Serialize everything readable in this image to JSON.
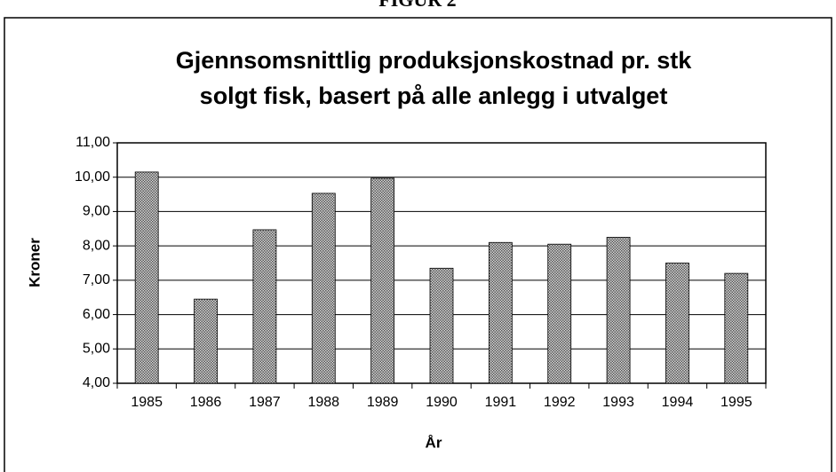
{
  "header": "FIGUR 2",
  "chart_data": {
    "type": "bar",
    "title": [
      "Gjennsomsnittlig produksjonskostnad pr. stk",
      "solgt fisk, basert på alle anlegg i utvalget"
    ],
    "xlabel": "År",
    "ylabel": "Kroner",
    "categories": [
      "1985",
      "1986",
      "1987",
      "1988",
      "1989",
      "1990",
      "1991",
      "1992",
      "1993",
      "1994",
      "1995"
    ],
    "values": [
      10.15,
      6.45,
      8.47,
      9.53,
      9.97,
      7.35,
      8.1,
      8.05,
      8.25,
      7.5,
      7.2
    ],
    "color": "#9a9a9a",
    "ylim": [
      4,
      11
    ],
    "yticks": [
      {
        "value": 4,
        "label": "4,00"
      },
      {
        "value": 5,
        "label": "5,00"
      },
      {
        "value": 6,
        "label": "6,00"
      },
      {
        "value": 7,
        "label": "7,00"
      },
      {
        "value": 8,
        "label": "8,00"
      },
      {
        "value": 9,
        "label": "9,00"
      },
      {
        "value": 10,
        "label": "10,00"
      },
      {
        "value": 11,
        "label": "11,00"
      }
    ],
    "grid": true
  }
}
